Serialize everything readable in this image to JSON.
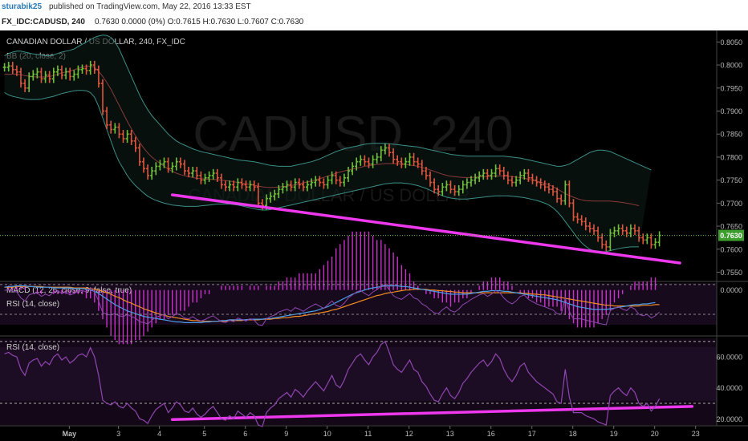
{
  "header": {
    "author": "sturabik25",
    "published_text": "published on TradingView.com, May 22, 2016 13:33 EST"
  },
  "quote_bar": {
    "symbol": "FX_IDC:CADUSD, 240",
    "values": "0.7630 0.0000 (0%) O:0.7615 H:0.7630 L:0.7607 C:0.7630"
  },
  "colors": {
    "background": "#000000",
    "up_bar": "#6fbf3a",
    "down_bar": "#e0553c",
    "trendline": "#ee38ee",
    "bb_band": "#3c8f86",
    "bb_basis": "#8a3a3a",
    "macd_line": "#4a9de8",
    "signal_line": "#f08a24",
    "histogram": "#ee38ee",
    "rsi_line": "#9046b0",
    "price_badge": "#3d9e2d"
  },
  "chart_data": [
    {
      "type": "line",
      "subtype": "ohlc",
      "title": "CANADIAN DOLLAR / US DOLLAR, 240, FX_IDC",
      "indicator_label": "BB (20, close, 2)",
      "watermark_symbol": "CADUSD",
      "watermark_interval": "240",
      "watermark_name": "CANADIAN DOLLAR / US DOLLAR",
      "y_ticks": [
        "0.8050",
        "0.8000",
        "0.7950",
        "0.7900",
        "0.7850",
        "0.7800",
        "0.7750",
        "0.7700",
        "0.7650",
        "0.7600",
        "0.7550"
      ],
      "ylim": [
        0.753,
        0.8075
      ],
      "last_price": "0.7630",
      "x_tick_labels": [
        "May",
        "3",
        "4",
        "5",
        "6",
        "9",
        "10",
        "11",
        "12",
        "13",
        "16",
        "17",
        "18",
        "19",
        "20",
        "23"
      ],
      "x_tick_bar_index": [
        8,
        20,
        30,
        41,
        51,
        61,
        71,
        81,
        91,
        101,
        111,
        121,
        131,
        141,
        151,
        161
      ],
      "closes": [
        0.7995,
        0.7998,
        0.799,
        0.7985,
        0.796,
        0.795,
        0.7975,
        0.798,
        0.7985,
        0.797,
        0.7978,
        0.797,
        0.7985,
        0.799,
        0.7978,
        0.7985,
        0.7975,
        0.798,
        0.799,
        0.7992,
        0.7988,
        0.8,
        0.799,
        0.796,
        0.79,
        0.787,
        0.786,
        0.7865,
        0.785,
        0.784,
        0.785,
        0.7835,
        0.782,
        0.779,
        0.7775,
        0.776,
        0.777,
        0.778,
        0.7785,
        0.779,
        0.7775,
        0.778,
        0.779,
        0.7785,
        0.777,
        0.7765,
        0.777,
        0.776,
        0.775,
        0.7755,
        0.776,
        0.7765,
        0.7755,
        0.774,
        0.7735,
        0.774,
        0.7735,
        0.7745,
        0.774,
        0.7735,
        0.774,
        0.7735,
        0.77,
        0.7695,
        0.771,
        0.7715,
        0.772,
        0.773,
        0.7735,
        0.774,
        0.7735,
        0.7745,
        0.774,
        0.7735,
        0.774,
        0.7745,
        0.775,
        0.7745,
        0.774,
        0.775,
        0.776,
        0.775,
        0.7745,
        0.7755,
        0.777,
        0.778,
        0.779,
        0.7795,
        0.779,
        0.7785,
        0.7795,
        0.78,
        0.7815,
        0.782,
        0.781,
        0.7795,
        0.779,
        0.7785,
        0.779,
        0.78,
        0.779,
        0.7785,
        0.777,
        0.776,
        0.7745,
        0.773,
        0.7725,
        0.7735,
        0.774,
        0.773,
        0.7725,
        0.773,
        0.774,
        0.7745,
        0.775,
        0.7755,
        0.776,
        0.7765,
        0.776,
        0.7765,
        0.7775,
        0.777,
        0.776,
        0.775,
        0.7745,
        0.775,
        0.776,
        0.7765,
        0.7755,
        0.775,
        0.7745,
        0.774,
        0.7735,
        0.773,
        0.7725,
        0.771,
        0.7705,
        0.774,
        0.77,
        0.767,
        0.7665,
        0.766,
        0.765,
        0.7645,
        0.764,
        0.7625,
        0.761,
        0.7605,
        0.7635,
        0.764,
        0.7645,
        0.764,
        0.7635,
        0.7645,
        0.764,
        0.7625,
        0.762,
        0.7625,
        0.761,
        0.7615,
        0.763
      ],
      "bb_upper": [
        0.802,
        0.8025,
        0.8028,
        0.803,
        0.803,
        0.8028,
        0.8026,
        0.8024,
        0.8023,
        0.8022,
        0.802,
        0.802,
        0.8022,
        0.8025,
        0.8028,
        0.803,
        0.8032,
        0.8035,
        0.804,
        0.8045,
        0.805,
        0.8055,
        0.806,
        0.8063,
        0.8065,
        0.8064,
        0.806,
        0.805,
        0.8035,
        0.8015,
        0.7995,
        0.7975,
        0.7955,
        0.7935,
        0.7918,
        0.7903,
        0.789,
        0.788,
        0.787,
        0.786,
        0.785,
        0.7842,
        0.7835,
        0.783,
        0.7826,
        0.7822,
        0.7818,
        0.7815,
        0.7812,
        0.781,
        0.7808,
        0.7806,
        0.7804,
        0.7802,
        0.78,
        0.7798,
        0.7796,
        0.7794,
        0.7793,
        0.7792,
        0.7791,
        0.779,
        0.7788,
        0.7786,
        0.7784,
        0.7782,
        0.7781,
        0.778,
        0.778,
        0.778,
        0.778,
        0.7782,
        0.7784,
        0.7786,
        0.7788,
        0.779,
        0.7793,
        0.7796,
        0.78,
        0.7804,
        0.7808,
        0.7812,
        0.7815,
        0.7818,
        0.782,
        0.7822,
        0.7824,
        0.7826,
        0.7828,
        0.7829,
        0.783,
        0.783,
        0.783,
        0.783,
        0.7829,
        0.7828,
        0.7827,
        0.7826,
        0.7825,
        0.7824,
        0.7823,
        0.7822,
        0.782,
        0.7818,
        0.7816,
        0.7814,
        0.7812,
        0.781,
        0.7808,
        0.7806,
        0.7805,
        0.7804,
        0.7803,
        0.7802,
        0.7802,
        0.7802,
        0.7802,
        0.7802,
        0.7802,
        0.7802,
        0.7802,
        0.7802,
        0.7802,
        0.7801,
        0.78,
        0.7799,
        0.7798,
        0.7796,
        0.7794,
        0.7792,
        0.779,
        0.7788,
        0.7786,
        0.7784,
        0.7782,
        0.778,
        0.778,
        0.7782,
        0.7785,
        0.779,
        0.7795,
        0.78,
        0.7805,
        0.781,
        0.7813,
        0.7815,
        0.7815,
        0.7814,
        0.7812,
        0.7808,
        0.7804,
        0.78,
        0.7796,
        0.7792,
        0.7788,
        0.7784,
        0.778,
        0.7776,
        0.7772
      ],
      "bb_lower": [
        0.794,
        0.7935,
        0.7932,
        0.793,
        0.7928,
        0.7926,
        0.7925,
        0.7925,
        0.7925,
        0.7926,
        0.7928,
        0.793,
        0.7932,
        0.7935,
        0.7938,
        0.794,
        0.7942,
        0.7944,
        0.7945,
        0.7945,
        0.7944,
        0.794,
        0.793,
        0.791,
        0.7885,
        0.786,
        0.7835,
        0.781,
        0.779,
        0.7775,
        0.776,
        0.7748,
        0.7738,
        0.773,
        0.7722,
        0.7715,
        0.771,
        0.7706,
        0.7703,
        0.77,
        0.7698,
        0.7696,
        0.7695,
        0.7694,
        0.7693,
        0.7693,
        0.7693,
        0.7693,
        0.7694,
        0.7695,
        0.7696,
        0.7697,
        0.7698,
        0.7698,
        0.7698,
        0.7698,
        0.7697,
        0.7696,
        0.7694,
        0.7692,
        0.769,
        0.7688,
        0.7686,
        0.7685,
        0.7685,
        0.7686,
        0.7688,
        0.769,
        0.7692,
        0.7694,
        0.7696,
        0.7698,
        0.77,
        0.7702,
        0.7704,
        0.7706,
        0.7708,
        0.771,
        0.7712,
        0.7714,
        0.7716,
        0.7718,
        0.772,
        0.7722,
        0.7724,
        0.7726,
        0.7728,
        0.773,
        0.7732,
        0.7734,
        0.7736,
        0.7738,
        0.774,
        0.7742,
        0.7743,
        0.7744,
        0.7744,
        0.7744,
        0.7743,
        0.7742,
        0.774,
        0.7738,
        0.7735,
        0.7732,
        0.7728,
        0.7724,
        0.772,
        0.7716,
        0.7713,
        0.7711,
        0.771,
        0.7709,
        0.7709,
        0.7709,
        0.771,
        0.7711,
        0.7712,
        0.7713,
        0.7714,
        0.7715,
        0.7716,
        0.7716,
        0.7716,
        0.7716,
        0.7715,
        0.7714,
        0.7713,
        0.7712,
        0.771,
        0.7708,
        0.7706,
        0.7703,
        0.77,
        0.7696,
        0.769,
        0.7682,
        0.7672,
        0.766,
        0.7648,
        0.7636,
        0.7624,
        0.7614,
        0.7606,
        0.76,
        0.7596,
        0.7594,
        0.7594,
        0.7595,
        0.7597,
        0.7599,
        0.7601,
        0.7603,
        0.7604,
        0.7605,
        0.7605,
        0.7605
      ],
      "trendline": {
        "from": {
          "bar": 41,
          "price": 0.7718
        },
        "to": {
          "bar": 165,
          "price": 0.757
        }
      }
    },
    {
      "type": "line",
      "indicator_label": "MACD (12, 26, close, 9, false, true)",
      "y_ticks": [
        "0.0000"
      ],
      "macd": [
        0.0004,
        0.0005,
        0.0005,
        0.0006,
        0.0006,
        0.0006,
        0.0005,
        0.0005,
        0.0004,
        0.0004,
        0.0004,
        0.0004,
        0.0003,
        0.0003,
        0.0003,
        0.0003,
        0.0003,
        0.0002,
        0.0002,
        0.0002,
        0.0001,
        0.0,
        -0.0002,
        -0.0005,
        -0.0009,
        -0.0013,
        -0.0017,
        -0.0021,
        -0.0024,
        -0.0027,
        -0.003,
        -0.0032,
        -0.0034,
        -0.0036,
        -0.0038,
        -0.0039,
        -0.004,
        -0.0041,
        -0.0042,
        -0.0043,
        -0.0044,
        -0.0045,
        -0.0046,
        -0.0046,
        -0.0047,
        -0.0047,
        -0.0047,
        -0.0047,
        -0.0047,
        -0.0046,
        -0.0046,
        -0.0045,
        -0.0045,
        -0.0044,
        -0.0044,
        -0.0043,
        -0.0043,
        -0.0043,
        -0.0043,
        -0.0043,
        -0.0042,
        -0.0042,
        -0.0042,
        -0.0042,
        -0.0041,
        -0.0041,
        -0.004,
        -0.0039,
        -0.0038,
        -0.0037,
        -0.0036,
        -0.0035,
        -0.0034,
        -0.0033,
        -0.0032,
        -0.0031,
        -0.003,
        -0.0028,
        -0.0026,
        -0.0024,
        -0.0021,
        -0.0018,
        -0.0015,
        -0.0012,
        -0.0009,
        -0.0006,
        -0.0004,
        -0.0002,
        0.0,
        0.0002,
        0.0003,
        0.0004,
        0.0005,
        0.0006,
        0.0006,
        0.0006,
        0.0006,
        0.0005,
        0.0005,
        0.0004,
        0.0003,
        0.0002,
        0.0001,
        0.0,
        -0.0001,
        -0.0002,
        -0.0003,
        -0.0004,
        -0.0005,
        -0.0006,
        -0.0006,
        -0.0006,
        -0.0006,
        -0.0006,
        -0.0005,
        -0.0004,
        -0.0003,
        -0.0002,
        -0.0002,
        -0.0001,
        -0.0001,
        -0.0001,
        -0.0002,
        -0.0002,
        -0.0003,
        -0.0004,
        -0.0005,
        -0.0006,
        -0.0007,
        -0.0008,
        -0.0009,
        -0.001,
        -0.0011,
        -0.0012,
        -0.0013,
        -0.0014,
        -0.0016,
        -0.0018,
        -0.002,
        -0.0022,
        -0.0024,
        -0.0025,
        -0.0026,
        -0.0027,
        -0.0028,
        -0.0028,
        -0.0028,
        -0.0028,
        -0.0027,
        -0.0026,
        -0.0025,
        -0.0024,
        -0.0023,
        -0.0022,
        -0.0021,
        -0.0021,
        -0.002,
        -0.002,
        -0.0019,
        -0.0018
      ],
      "signal": [
        0.0004,
        0.0004,
        0.0004,
        0.0005,
        0.0005,
        0.0005,
        0.0005,
        0.0005,
        0.0005,
        0.0005,
        0.0004,
        0.0004,
        0.0004,
        0.0004,
        0.0004,
        0.0004,
        0.0004,
        0.0003,
        0.0003,
        0.0003,
        0.0003,
        0.0002,
        0.0001,
        0.0,
        -0.0002,
        -0.0004,
        -0.0006,
        -0.0009,
        -0.0011,
        -0.0014,
        -0.0017,
        -0.0019,
        -0.0022,
        -0.0024,
        -0.0027,
        -0.0029,
        -0.0031,
        -0.0033,
        -0.0035,
        -0.0036,
        -0.0038,
        -0.0039,
        -0.004,
        -0.0041,
        -0.0042,
        -0.0043,
        -0.0044,
        -0.0044,
        -0.0045,
        -0.0045,
        -0.0045,
        -0.0045,
        -0.0045,
        -0.0045,
        -0.0045,
        -0.0044,
        -0.0044,
        -0.0044,
        -0.0044,
        -0.0043,
        -0.0043,
        -0.0043,
        -0.0043,
        -0.0042,
        -0.0042,
        -0.0042,
        -0.0041,
        -0.0041,
        -0.004,
        -0.004,
        -0.0039,
        -0.0038,
        -0.0038,
        -0.0037,
        -0.0036,
        -0.0035,
        -0.0034,
        -0.0033,
        -0.0032,
        -0.0031,
        -0.0029,
        -0.0028,
        -0.0026,
        -0.0024,
        -0.0022,
        -0.002,
        -0.0018,
        -0.0016,
        -0.0014,
        -0.0012,
        -0.001,
        -0.0008,
        -0.0007,
        -0.0005,
        -0.0004,
        -0.0003,
        -0.0002,
        -0.0001,
        0.0,
        0.0,
        0.0001,
        0.0001,
        0.0001,
        0.0001,
        0.0,
        0.0,
        -0.0001,
        -0.0001,
        -0.0002,
        -0.0002,
        -0.0003,
        -0.0003,
        -0.0004,
        -0.0004,
        -0.0004,
        -0.0004,
        -0.0004,
        -0.0004,
        -0.0004,
        -0.0004,
        -0.0004,
        -0.0004,
        -0.0004,
        -0.0004,
        -0.0004,
        -0.0004,
        -0.0004,
        -0.0005,
        -0.0005,
        -0.0006,
        -0.0006,
        -0.0007,
        -0.0007,
        -0.0008,
        -0.0009,
        -0.001,
        -0.0011,
        -0.0012,
        -0.0013,
        -0.0014,
        -0.0015,
        -0.0016,
        -0.0017,
        -0.0018,
        -0.0019,
        -0.002,
        -0.0021,
        -0.0022,
        -0.0022,
        -0.0023,
        -0.0023,
        -0.0023,
        -0.0023,
        -0.0023,
        -0.0023,
        -0.0023,
        -0.0022,
        -0.0022,
        -0.0022,
        -0.0021,
        -0.0021
      ]
    },
    {
      "type": "line",
      "indicator_label": "RSI (14, close)",
      "y_ticks": [
        "60.0000",
        "40.0000",
        "20.0000"
      ],
      "ylim": [
        16,
        72
      ],
      "bands": [
        70,
        30
      ],
      "values": [
        62,
        63,
        61,
        60,
        52,
        48,
        56,
        58,
        59,
        54,
        57,
        55,
        60,
        62,
        58,
        60,
        56,
        58,
        61,
        62,
        60,
        66,
        60,
        48,
        32,
        30,
        29,
        31,
        28,
        27,
        30,
        27,
        25,
        20,
        19,
        17,
        22,
        26,
        28,
        30,
        24,
        27,
        31,
        29,
        25,
        24,
        27,
        23,
        21,
        23,
        26,
        28,
        24,
        20,
        19,
        22,
        20,
        25,
        23,
        21,
        24,
        22,
        16,
        15,
        24,
        27,
        29,
        33,
        35,
        37,
        34,
        39,
        37,
        34,
        38,
        41,
        44,
        41,
        38,
        43,
        48,
        42,
        40,
        45,
        52,
        56,
        60,
        62,
        58,
        55,
        60,
        63,
        68,
        70,
        63,
        55,
        52,
        50,
        54,
        58,
        52,
        50,
        44,
        41,
        36,
        32,
        31,
        36,
        40,
        35,
        33,
        37,
        43,
        46,
        50,
        53,
        56,
        58,
        54,
        57,
        62,
        59,
        52,
        47,
        44,
        48,
        54,
        56,
        50,
        47,
        44,
        42,
        40,
        38,
        36,
        31,
        30,
        52,
        34,
        24,
        24,
        24,
        22,
        21,
        20,
        18,
        17,
        16,
        35,
        38,
        40,
        37,
        35,
        40,
        37,
        30,
        28,
        30,
        25,
        28,
        33
      ],
      "trendline": {
        "from": {
          "bar": 41,
          "value": 19.5
        },
        "to": {
          "bar": 168,
          "value": 28
        }
      }
    }
  ]
}
